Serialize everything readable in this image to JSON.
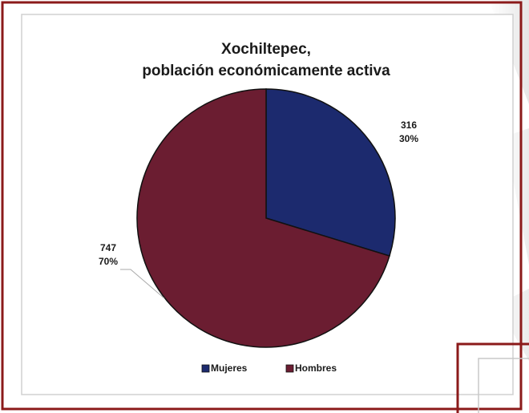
{
  "chart_data": {
    "type": "pie",
    "title": [
      "Xochiltepec,",
      "población  económicamente activa"
    ],
    "categories": [
      "Mujeres",
      "Hombres"
    ],
    "values": [
      316,
      747
    ],
    "percent_labels": [
      "30%",
      "70%"
    ],
    "colors": [
      "#1c2a6e",
      "#6b1d31"
    ],
    "legend": "bottom"
  }
}
